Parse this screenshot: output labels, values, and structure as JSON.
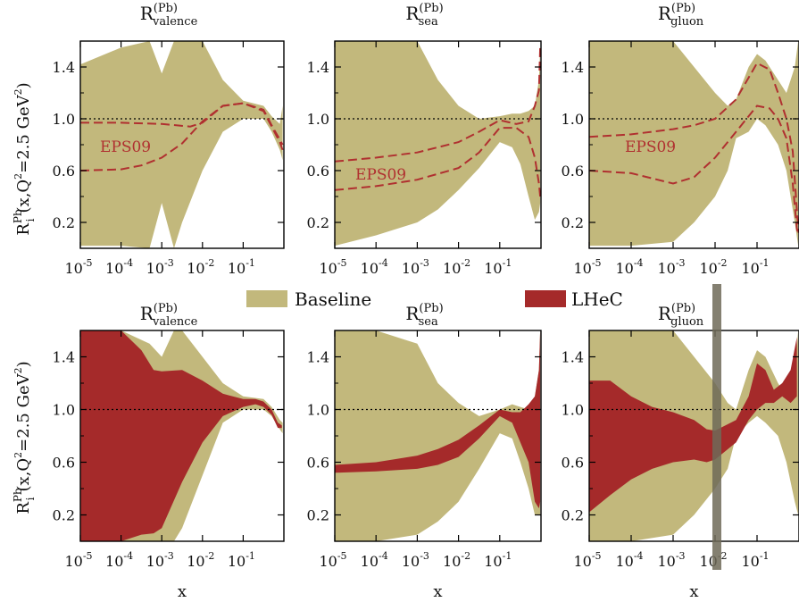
{
  "colors": {
    "baseline": "#c2b87c",
    "lhec": "#a52a2a",
    "eps09": "#b03030",
    "axis": "#000000"
  },
  "figure": {
    "legend": {
      "baseline": "Baseline",
      "lhec": "LHeC"
    },
    "ylabel": {
      "R": "R",
      "sup": "Pb",
      "sub": "i",
      "rest": "(x,Q",
      "q2sup": "2",
      "tail": "=2.5 GeV",
      "unitsup": "2",
      "close": ")"
    },
    "xlabel": "x"
  },
  "chart_data": [
    {
      "type": "area",
      "row": "top",
      "title": {
        "R": "R",
        "sup": "(Pb)",
        "sub": "valence"
      },
      "ylim": [
        0,
        1.6
      ],
      "xscale": "log",
      "xlim": [
        -5,
        0
      ],
      "yticks": [
        "0.2",
        "0.6",
        "1.0",
        "1.4"
      ],
      "xticks": [
        "-5",
        "-4",
        "-3",
        "-2",
        "-1"
      ],
      "reference_line": 1.0,
      "annotation": "EPS09",
      "series": [
        {
          "name": "Baseline",
          "band": true,
          "x": [
            -5,
            -4,
            -3.3,
            -3,
            -2.7,
            -2.5,
            -2,
            -1.5,
            -1,
            -0.5,
            -0.3,
            -0.1,
            -0.03
          ],
          "upper": [
            1.42,
            1.55,
            1.6,
            1.35,
            1.6,
            1.6,
            1.6,
            1.3,
            1.14,
            1.1,
            1.02,
            0.96,
            1.1
          ],
          "lower": [
            0.02,
            0.02,
            0.0,
            0.35,
            0.0,
            0.2,
            0.6,
            0.9,
            1.0,
            1.0,
            0.9,
            0.76,
            0.68
          ]
        },
        {
          "name": "EPS09 upper",
          "line": true,
          "x": [
            -5,
            -4,
            -3,
            -2.3,
            -2,
            -1.5,
            -1,
            -0.5,
            -0.3,
            -0.1,
            -0.03
          ],
          "y": [
            0.97,
            0.97,
            0.96,
            0.94,
            0.97,
            1.1,
            1.12,
            1.07,
            0.95,
            0.84,
            0.8
          ]
        },
        {
          "name": "EPS09 lower",
          "line": true,
          "x": [
            -5,
            -4,
            -3.5,
            -3,
            -2.5,
            -2,
            -1.5,
            -1,
            -0.5,
            -0.3,
            -0.1,
            -0.03
          ],
          "y": [
            0.6,
            0.61,
            0.64,
            0.7,
            0.81,
            0.98,
            1.1,
            1.12,
            1.06,
            0.94,
            0.82,
            0.76
          ]
        }
      ]
    },
    {
      "type": "area",
      "row": "top",
      "title": {
        "R": "R",
        "sup": "(Pb)",
        "sub": "sea"
      },
      "ylim": [
        0,
        1.6
      ],
      "xscale": "log",
      "xlim": [
        -5,
        0
      ],
      "yticks": [
        "0.2",
        "0.6",
        "1.0",
        "1.4"
      ],
      "xticks": [
        "-5",
        "-4",
        "-3",
        "-2",
        "-1"
      ],
      "reference_line": 1.0,
      "annotation": "EPS09",
      "series": [
        {
          "name": "Baseline",
          "band": true,
          "x": [
            -5,
            -4,
            -3,
            -2.5,
            -2,
            -1.5,
            -1,
            -0.7,
            -0.5,
            -0.3,
            -0.15,
            -0.05,
            -0.02
          ],
          "upper": [
            1.6,
            1.6,
            1.6,
            1.3,
            1.1,
            1.0,
            1.02,
            1.04,
            1.04,
            1.06,
            1.1,
            1.3,
            1.55
          ],
          "lower": [
            0.02,
            0.1,
            0.2,
            0.3,
            0.45,
            0.62,
            0.82,
            0.78,
            0.65,
            0.4,
            0.22,
            0.28,
            0.35
          ]
        },
        {
          "name": "EPS09 upper",
          "line": true,
          "x": [
            -5,
            -4,
            -3,
            -2,
            -1.5,
            -1,
            -0.6,
            -0.3,
            -0.15,
            -0.05,
            -0.02
          ],
          "y": [
            0.67,
            0.7,
            0.74,
            0.82,
            0.9,
            0.99,
            0.96,
            0.98,
            1.1,
            1.22,
            1.55
          ]
        },
        {
          "name": "EPS09 lower",
          "line": true,
          "x": [
            -5,
            -4,
            -3,
            -2,
            -1.5,
            -1,
            -0.6,
            -0.3,
            -0.15,
            -0.05,
            -0.02
          ],
          "y": [
            0.45,
            0.48,
            0.53,
            0.62,
            0.74,
            0.93,
            0.93,
            0.86,
            0.7,
            0.5,
            0.4
          ]
        }
      ]
    },
    {
      "type": "area",
      "row": "top",
      "title": {
        "R": "R",
        "sup": "(Pb)",
        "sub": "gluon"
      },
      "ylim": [
        0,
        1.6
      ],
      "xscale": "log",
      "xlim": [
        -5,
        0
      ],
      "yticks": [
        "0.2",
        "0.6",
        "1.0",
        "1.4"
      ],
      "xticks": [
        "-5",
        "-4",
        "-3",
        "-2",
        "-1"
      ],
      "reference_line": 1.0,
      "annotation": "EPS09",
      "series": [
        {
          "name": "Baseline",
          "band": true,
          "x": [
            -5,
            -4,
            -3,
            -2.5,
            -2,
            -1.7,
            -1.5,
            -1.2,
            -1,
            -0.8,
            -0.5,
            -0.3,
            -0.1,
            -0.02
          ],
          "upper": [
            1.6,
            1.6,
            1.6,
            1.4,
            1.2,
            1.1,
            1.15,
            1.4,
            1.5,
            1.45,
            1.3,
            1.2,
            1.4,
            1.6
          ],
          "lower": [
            0.02,
            0.02,
            0.05,
            0.2,
            0.4,
            0.6,
            0.85,
            0.9,
            1.0,
            0.95,
            0.8,
            0.6,
            0.2,
            0.02
          ]
        },
        {
          "name": "EPS09 upper",
          "line": true,
          "x": [
            -5,
            -4,
            -3,
            -2.5,
            -2,
            -1.5,
            -1,
            -0.7,
            -0.5,
            -0.3,
            -0.15,
            -0.05,
            -0.01
          ],
          "y": [
            0.86,
            0.88,
            0.92,
            0.95,
            1.0,
            1.15,
            1.43,
            1.38,
            1.2,
            1.0,
            0.75,
            0.3,
            0.12
          ]
        },
        {
          "name": "EPS09 lower",
          "line": true,
          "x": [
            -5,
            -4,
            -3.5,
            -3,
            -2.5,
            -2,
            -1.5,
            -1,
            -0.7,
            -0.5,
            -0.3,
            -0.15,
            -0.05,
            -0.01
          ],
          "y": [
            0.6,
            0.58,
            0.54,
            0.5,
            0.55,
            0.7,
            0.9,
            1.1,
            1.08,
            1.0,
            0.85,
            0.5,
            0.15,
            0.1
          ]
        }
      ]
    },
    {
      "type": "area",
      "row": "bottom",
      "title": {
        "R": "R",
        "sup": "(Pb)",
        "sub": "valence"
      },
      "ylim": [
        0,
        1.6
      ],
      "xscale": "log",
      "xlim": [
        -5,
        0
      ],
      "yticks": [
        "0.2",
        "0.6",
        "1.0",
        "1.4"
      ],
      "xticks": [
        "-5",
        "-4",
        "-3",
        "-2",
        "-1"
      ],
      "reference_line": 1.0,
      "xlabel": "x",
      "series": [
        {
          "name": "Baseline",
          "band": true,
          "x": [
            -5,
            -4,
            -3.3,
            -3,
            -2.7,
            -2.5,
            -2,
            -1.5,
            -1,
            -0.5,
            -0.3,
            -0.1,
            -0.03
          ],
          "upper": [
            1.6,
            1.6,
            1.5,
            1.4,
            1.6,
            1.6,
            1.4,
            1.2,
            1.1,
            1.08,
            1.02,
            0.92,
            0.9
          ],
          "lower": [
            0.0,
            0.0,
            0.0,
            0.0,
            0.0,
            0.1,
            0.5,
            0.9,
            1.0,
            1.0,
            0.95,
            0.85,
            0.82
          ]
        },
        {
          "name": "LHeC",
          "band": true,
          "x": [
            -5,
            -4,
            -3.5,
            -3.2,
            -3,
            -2.5,
            -2,
            -1.5,
            -1,
            -0.7,
            -0.5,
            -0.3,
            -0.15,
            -0.05
          ],
          "upper": [
            1.6,
            1.6,
            1.45,
            1.3,
            1.29,
            1.3,
            1.22,
            1.12,
            1.08,
            1.08,
            1.06,
            1.0,
            0.9,
            0.88
          ],
          "lower": [
            0.0,
            0.0,
            0.05,
            0.06,
            0.1,
            0.45,
            0.75,
            0.95,
            1.02,
            1.04,
            1.02,
            0.96,
            0.86,
            0.86
          ]
        }
      ]
    },
    {
      "type": "area",
      "row": "bottom",
      "title": {
        "R": "R",
        "sup": "(Pb)",
        "sub": "sea"
      },
      "ylim": [
        0,
        1.6
      ],
      "xscale": "log",
      "xlim": [
        -5,
        0
      ],
      "yticks": [
        "0.2",
        "0.6",
        "1.0",
        "1.4"
      ],
      "xticks": [
        "-5",
        "-4",
        "-3",
        "-2",
        "-1"
      ],
      "reference_line": 1.0,
      "xlabel": "x",
      "series": [
        {
          "name": "Baseline",
          "band": true,
          "x": [
            -5,
            -4,
            -3,
            -2.5,
            -2,
            -1.5,
            -1,
            -0.7,
            -0.5,
            -0.3,
            -0.15,
            -0.05,
            -0.02
          ],
          "upper": [
            1.6,
            1.6,
            1.5,
            1.2,
            1.05,
            0.95,
            1.0,
            1.04,
            1.02,
            1.0,
            1.1,
            1.3,
            1.6
          ],
          "lower": [
            0.0,
            0.0,
            0.05,
            0.15,
            0.3,
            0.55,
            0.82,
            0.78,
            0.6,
            0.4,
            0.2,
            0.2,
            0.2
          ]
        },
        {
          "name": "LHeC",
          "band": true,
          "x": [
            -5,
            -4,
            -3,
            -2.5,
            -2,
            -1.5,
            -1,
            -0.7,
            -0.5,
            -0.3,
            -0.15,
            -0.05,
            -0.02
          ],
          "upper": [
            0.58,
            0.6,
            0.65,
            0.7,
            0.77,
            0.88,
            1.0,
            0.98,
            0.98,
            1.04,
            1.1,
            1.3,
            1.6
          ],
          "lower": [
            0.52,
            0.53,
            0.55,
            0.58,
            0.64,
            0.78,
            0.95,
            0.9,
            0.75,
            0.6,
            0.3,
            0.25,
            0.3
          ]
        }
      ]
    },
    {
      "type": "area",
      "row": "bottom",
      "title": {
        "R": "R",
        "sup": "(Pb)",
        "sub": "gluon"
      },
      "ylim": [
        0,
        1.6
      ],
      "xscale": "log",
      "xlim": [
        -5,
        0
      ],
      "yticks": [
        "0.2",
        "0.6",
        "1.0",
        "1.4"
      ],
      "xticks": [
        "-5",
        "-4",
        "-3",
        "-2",
        "-1"
      ],
      "reference_line": 1.0,
      "xlabel": "x",
      "series": [
        {
          "name": "Baseline",
          "band": true,
          "x": [
            -5,
            -4,
            -3,
            -2.5,
            -2,
            -1.7,
            -1.5,
            -1.2,
            -1,
            -0.8,
            -0.5,
            -0.3,
            -0.1,
            -0.02
          ],
          "upper": [
            1.6,
            1.6,
            1.6,
            1.4,
            1.2,
            1.05,
            1.0,
            1.3,
            1.45,
            1.4,
            1.2,
            1.1,
            1.3,
            1.6
          ],
          "lower": [
            0.0,
            0.0,
            0.05,
            0.2,
            0.4,
            0.55,
            0.8,
            0.9,
            0.95,
            0.9,
            0.8,
            0.6,
            0.3,
            0.2
          ]
        },
        {
          "name": "LHeC",
          "band": true,
          "x": [
            -5,
            -4.5,
            -4,
            -3.5,
            -3,
            -2.5,
            -2.2,
            -2,
            -1.5,
            -1.2,
            -1,
            -0.8,
            -0.6,
            -0.4,
            -0.2,
            -0.05
          ],
          "upper": [
            1.22,
            1.22,
            1.1,
            1.02,
            0.98,
            0.92,
            0.85,
            0.84,
            0.92,
            1.1,
            1.35,
            1.3,
            1.15,
            1.2,
            1.3,
            1.55
          ],
          "lower": [
            0.22,
            0.35,
            0.47,
            0.55,
            0.6,
            0.62,
            0.6,
            0.62,
            0.75,
            0.92,
            1.0,
            1.05,
            1.05,
            1.1,
            1.05,
            1.1
          ]
        }
      ]
    }
  ]
}
